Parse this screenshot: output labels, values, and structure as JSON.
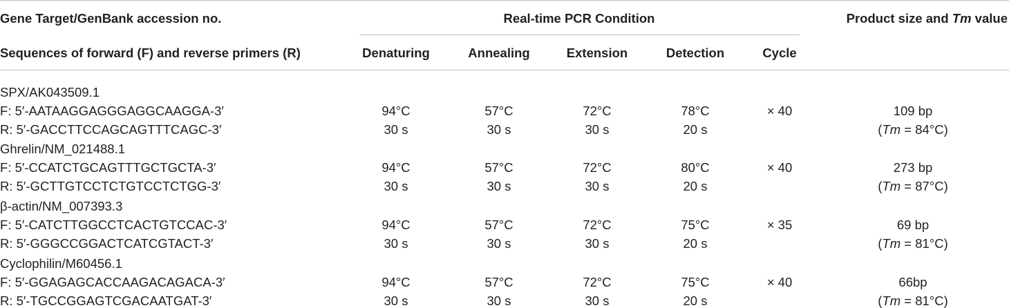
{
  "header": {
    "col1_top": "Gene Target/GenBank accession no.",
    "col1_bottom": "Sequences of forward (F) and reverse primers (R)",
    "pcr_group": "Real-time PCR Condition",
    "denaturing": "Denaturing",
    "annealing": "Annealing",
    "extension": "Extension",
    "detection": "Detection",
    "cycle": "Cycle",
    "product_prefix": "Product size and ",
    "product_tm": "Tm",
    "product_suffix": " value"
  },
  "genes": [
    {
      "name": "SPX/AK043509.1",
      "forward": "F: 5′-AATAAGGAGGGAGGCAAGGA-3′",
      "reverse": "R: 5′-GACCTTCCAGCAGTTTCAGC-3′",
      "denaturing_temp": "94°C",
      "denaturing_time": "30 s",
      "annealing_temp": "57°C",
      "annealing_time": "30 s",
      "extension_temp": "72°C",
      "extension_time": "30 s",
      "detection_temp": "78°C",
      "detection_time": "20 s",
      "cycle": "× 40",
      "product_size": "109 bp",
      "tm_label": "Tm",
      "tm_value": " = 84°C)"
    },
    {
      "name": "Ghrelin/NM_021488.1",
      "forward": "F: 5′-CCATCTGCAGTTTGCTGCTA-3′",
      "reverse": "R: 5′-GCTTGTCCTCTGTCCTCTGG-3′",
      "denaturing_temp": "94°C",
      "denaturing_time": "30 s",
      "annealing_temp": "57°C",
      "annealing_time": "30 s",
      "extension_temp": "72°C",
      "extension_time": "30 s",
      "detection_temp": "80°C",
      "detection_time": "20 s",
      "cycle": "× 40",
      "product_size": "273 bp",
      "tm_label": "Tm",
      "tm_value": " = 87°C)"
    },
    {
      "name": "β-actin/NM_007393.3",
      "forward": "F: 5′-CATCTTGGCCTCACTGTCCAC-3′",
      "reverse": "R: 5′-GGGCCGGACTCATCGTACT-3′",
      "denaturing_temp": "94°C",
      "denaturing_time": "30 s",
      "annealing_temp": "57°C",
      "annealing_time": "30 s",
      "extension_temp": "72°C",
      "extension_time": "30 s",
      "detection_temp": "75°C",
      "detection_time": "20 s",
      "cycle": "× 35",
      "product_size": "69 bp",
      "tm_label": "Tm",
      "tm_value": " = 81°C)"
    },
    {
      "name": "Cyclophilin/M60456.1",
      "forward": "F: 5′-GGAGAGCACCAAGACAGACA-3′",
      "reverse": "R: 5′-TGCCGGAGTCGACAATGAT-3′",
      "denaturing_temp": "94°C",
      "denaturing_time": "30 s",
      "annealing_temp": "57°C",
      "annealing_time": "30 s",
      "extension_temp": "72°C",
      "extension_time": "30 s",
      "detection_temp": "75°C",
      "detection_time": "20 s",
      "cycle": "× 40",
      "product_size": "66bp",
      "tm_label": "Tm",
      "tm_value": " = 81°C)"
    }
  ]
}
